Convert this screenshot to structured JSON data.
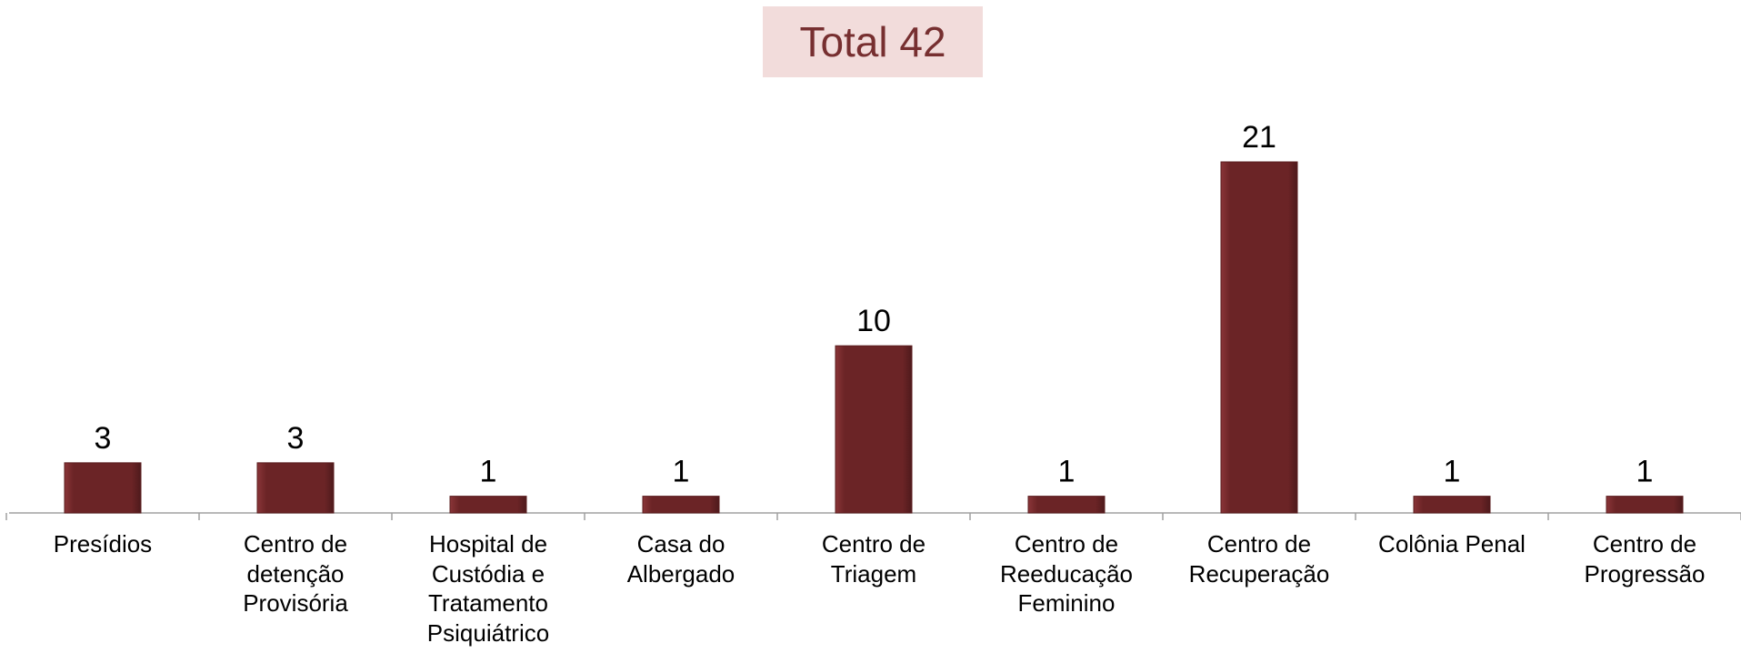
{
  "chart_data": {
    "type": "bar",
    "title": "Total 42",
    "categories": [
      "Presídios",
      "Centro de detenção Provisória",
      "Hospital de Custódia e Tratamento Psiquiátrico",
      "Casa do Albergado",
      "Centro de Triagem",
      "Centro de Reeducação Feminino",
      "Centro de Recuperação",
      "Colônia Penal",
      "Centro de Progressão"
    ],
    "values": [
      3,
      3,
      1,
      1,
      10,
      1,
      21,
      1,
      1
    ],
    "color": "#6b2426"
  }
}
